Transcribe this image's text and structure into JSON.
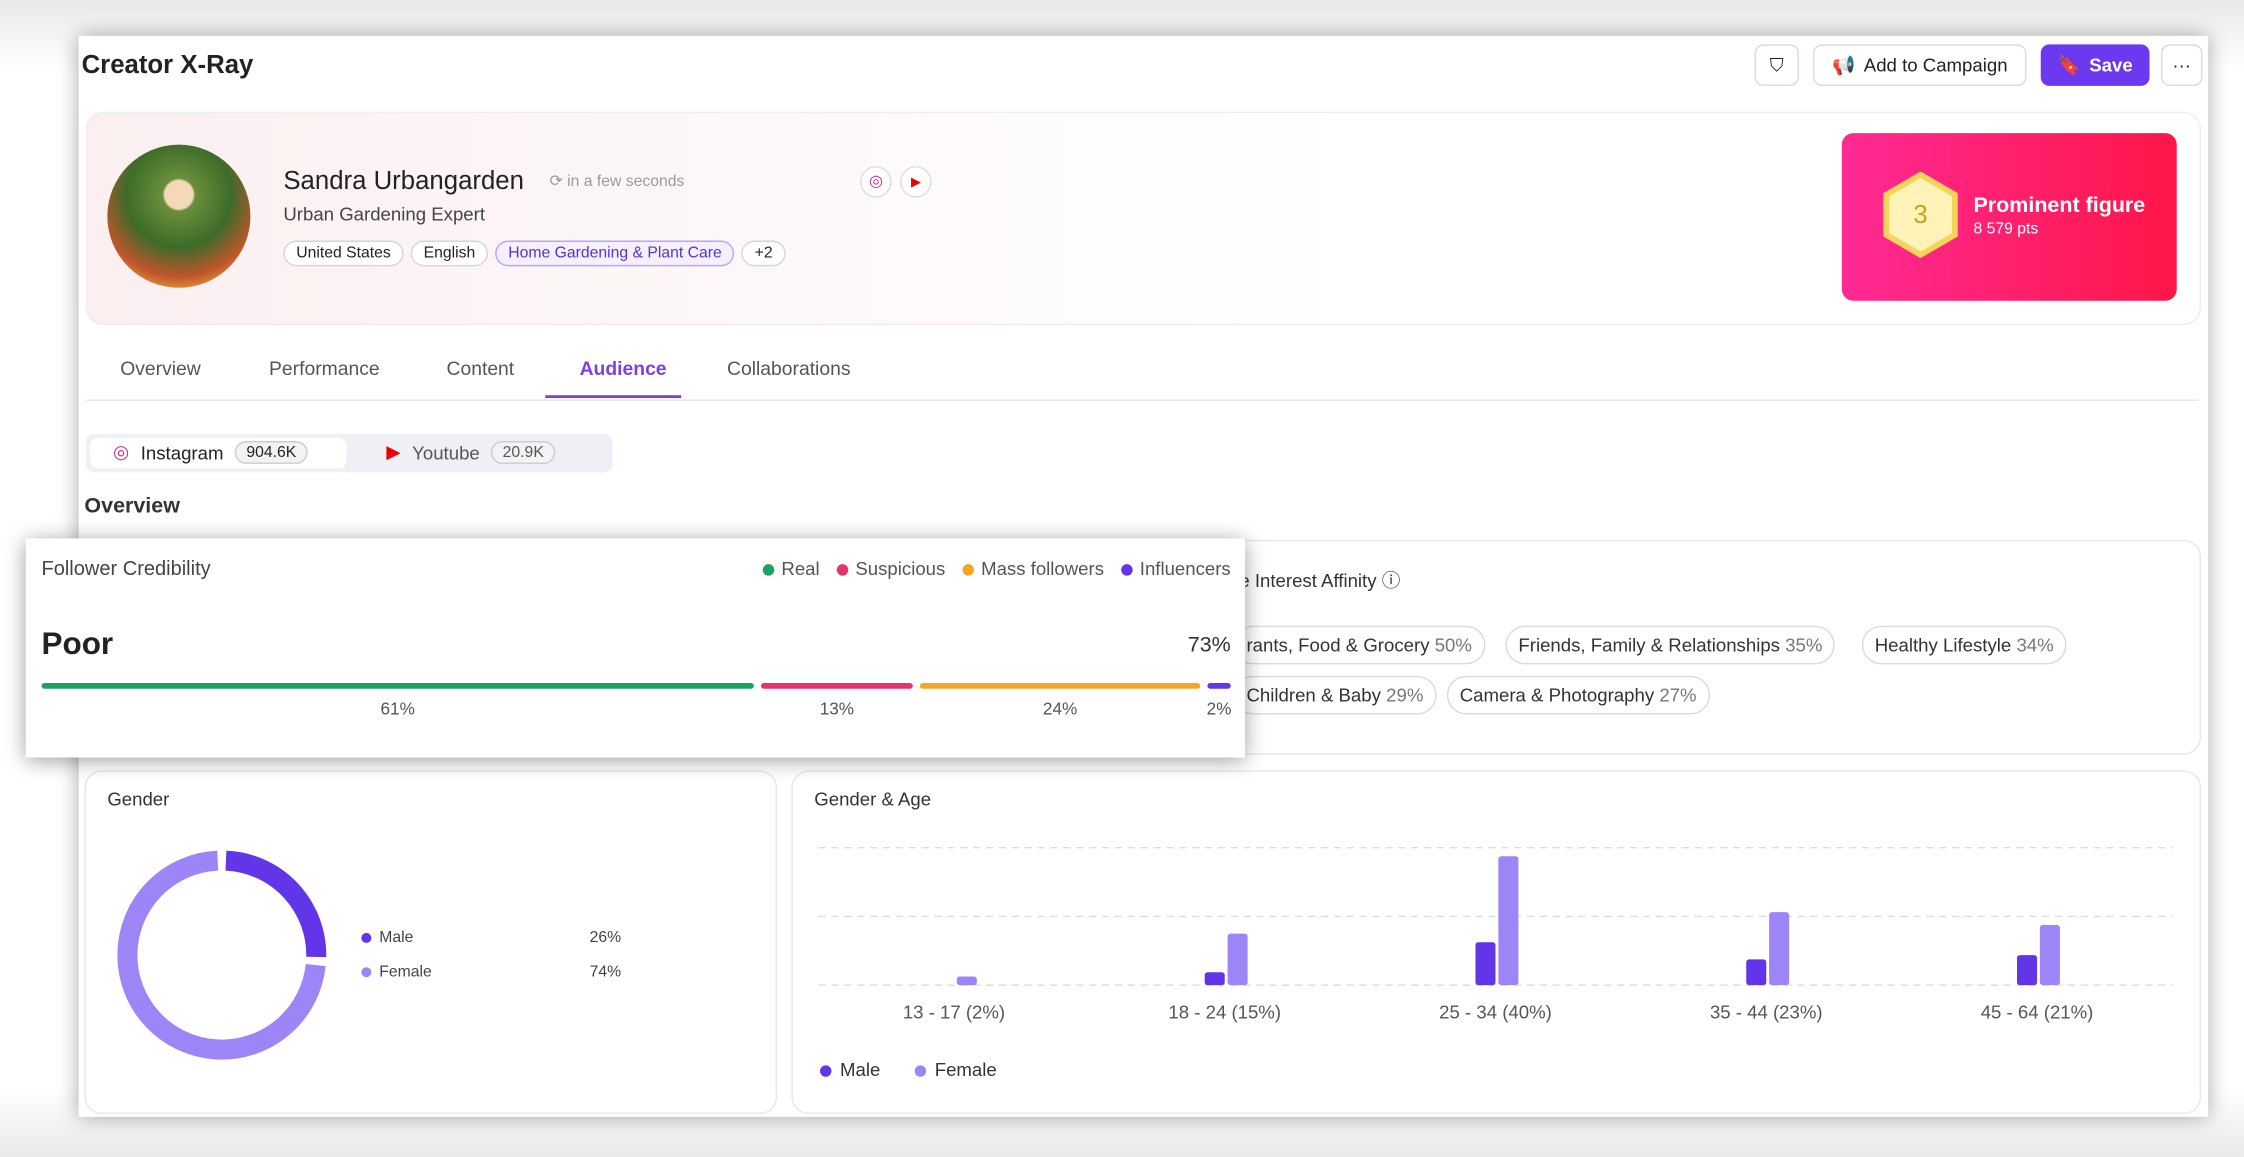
{
  "header": {
    "title": "Creator X-Ray",
    "add_to_campaign": "Add to Campaign",
    "save": "Save"
  },
  "profile": {
    "name": "Sandra Urbangarden",
    "updated": "in a few seconds",
    "bio": "Urban Gardening Expert",
    "tags": [
      "United States",
      "English",
      "Home Gardening & Plant Care",
      "+2"
    ]
  },
  "badge": {
    "level": "3",
    "title": "Prominent figure",
    "points": "8 579 pts"
  },
  "tabs": [
    "Overview",
    "Performance",
    "Content",
    "Audience",
    "Collaborations"
  ],
  "active_tab": 3,
  "platforms": [
    {
      "name": "Instagram",
      "followers": "904.6K"
    },
    {
      "name": "Youtube",
      "followers": "20.9K"
    }
  ],
  "section_title": "Overview",
  "follower_credibility": {
    "type": "bar",
    "title": "Follower Credibility",
    "rating": "Poor",
    "score": {
      "value": 73,
      "label": "73%"
    },
    "categories": [
      "Real",
      "Suspicious",
      "Mass followers",
      "Influencers"
    ],
    "colors": [
      "#1aa260",
      "#e8326b",
      "#f5a524",
      "#6236e8"
    ],
    "values": [
      61,
      13,
      24,
      2
    ],
    "value_labels": [
      "61%",
      "13%",
      "24%",
      "2%"
    ]
  },
  "interest_affinity": {
    "title": "e Interest Affinity",
    "items": [
      {
        "name": "rants, Food & Grocery",
        "value": "50%"
      },
      {
        "name": "Friends, Family & Relationships",
        "value": "35%"
      },
      {
        "name": "Healthy Lifestyle",
        "value": "34%"
      },
      {
        "name": "Children & Baby",
        "value": "29%"
      },
      {
        "name": "Camera & Photography",
        "value": "27%"
      }
    ]
  },
  "gender": {
    "type": "pie",
    "title": "Gender",
    "categories": [
      "Male",
      "Female"
    ],
    "values": [
      26,
      74
    ],
    "value_labels": [
      "26%",
      "74%"
    ],
    "colors": [
      "#6236e8",
      "#9d85f7"
    ]
  },
  "gender_age": {
    "type": "bar",
    "title": "Gender & Age",
    "categories": [
      "13 - 17 (2%)",
      "18 - 24 (15%)",
      "25 - 34 (40%)",
      "35 - 44 (23%)",
      "45 - 64 (21%)"
    ],
    "series": [
      {
        "name": "Male",
        "color": "#6236e8",
        "values": [
          0,
          3,
          10,
          6,
          7
        ]
      },
      {
        "name": "Female",
        "color": "#9d85f7",
        "values": [
          2,
          12,
          30,
          17,
          14
        ]
      }
    ],
    "ylim": [
      0,
      32
    ],
    "yticks": [
      0,
      16,
      32
    ],
    "grid": true
  }
}
